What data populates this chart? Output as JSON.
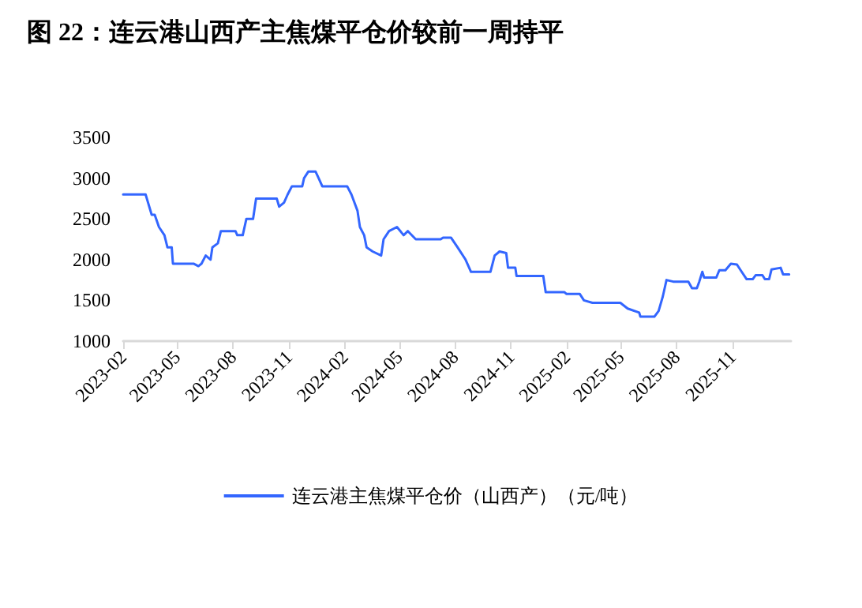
{
  "chart_data": {
    "type": "line",
    "title": "图 22：连云港山西产主焦煤平仓价较前一周持平",
    "x": [
      "2023-02-01",
      "2023-03-10",
      "2023-03-20",
      "2023-03-25",
      "2023-04-01",
      "2023-04-10",
      "2023-04-15",
      "2023-04-22",
      "2023-04-24",
      "2023-05-28",
      "2023-06-05",
      "2023-06-10",
      "2023-06-17",
      "2023-06-25",
      "2023-06-28",
      "2023-07-07",
      "2023-07-12",
      "2023-08-05",
      "2023-08-08",
      "2023-08-17",
      "2023-08-23",
      "2023-09-03",
      "2023-09-08",
      "2023-10-12",
      "2023-10-16",
      "2023-10-24",
      "2023-10-30",
      "2023-11-06",
      "2023-11-23",
      "2023-11-26",
      "2023-12-03",
      "2023-12-15",
      "2023-12-20",
      "2023-12-26",
      "2024-02-05",
      "2024-02-12",
      "2024-02-22",
      "2024-02-26",
      "2024-03-04",
      "2024-03-08",
      "2024-03-18",
      "2024-04-01",
      "2024-04-05",
      "2024-04-14",
      "2024-04-27",
      "2024-05-08",
      "2024-05-15",
      "2024-05-28",
      "2024-07-08",
      "2024-07-12",
      "2024-07-25",
      "2024-08-05",
      "2024-08-18",
      "2024-08-27",
      "2024-09-28",
      "2024-10-05",
      "2024-10-13",
      "2024-10-24",
      "2024-10-27",
      "2024-11-08",
      "2024-11-10",
      "2024-12-24",
      "2024-12-28",
      "2025-01-28",
      "2025-01-31",
      "2025-02-22",
      "2025-03-01",
      "2025-03-15",
      "2025-04-30",
      "2025-05-12",
      "2025-05-31",
      "2025-06-02",
      "2025-06-25",
      "2025-07-02",
      "2025-07-09",
      "2025-07-15",
      "2025-07-26",
      "2025-08-20",
      "2025-08-26",
      "2025-09-03",
      "2025-09-07",
      "2025-09-12",
      "2025-09-15",
      "2025-10-05",
      "2025-10-10",
      "2025-10-20",
      "2025-10-29",
      "2025-11-08",
      "2025-11-15",
      "2025-11-24",
      "2025-12-04",
      "2025-12-09",
      "2025-12-20",
      "2025-12-24",
      "2025-12-31",
      "2026-01-04",
      "2026-01-19",
      "2026-01-23",
      "2026-02-02"
    ],
    "series": [
      {
        "name": "连云港主焦煤平仓价（山西产）（元/吨）",
        "color": "#3366ff",
        "values": [
          2800,
          2800,
          2550,
          2550,
          2400,
          2300,
          2150,
          2150,
          1950,
          1950,
          1920,
          1950,
          2050,
          2000,
          2150,
          2200,
          2350,
          2350,
          2300,
          2300,
          2500,
          2500,
          2750,
          2750,
          2650,
          2700,
          2800,
          2900,
          2900,
          3000,
          3080,
          3080,
          3000,
          2900,
          2900,
          2800,
          2600,
          2400,
          2300,
          2150,
          2100,
          2050,
          2250,
          2350,
          2400,
          2300,
          2350,
          2250,
          2250,
          2270,
          2270,
          2150,
          2000,
          1850,
          1850,
          2050,
          2100,
          2080,
          1900,
          1900,
          1800,
          1800,
          1600,
          1600,
          1580,
          1580,
          1500,
          1470,
          1470,
          1400,
          1350,
          1300,
          1300,
          1370,
          1550,
          1750,
          1730,
          1730,
          1650,
          1650,
          1730,
          1850,
          1780,
          1780,
          1870,
          1870,
          1950,
          1940,
          1860,
          1760,
          1760,
          1810,
          1810,
          1760,
          1760,
          1880,
          1900,
          1820,
          1820
        ]
      }
    ],
    "xlim": [
      "2023-02-01",
      "2026-02-05"
    ],
    "xticks": [
      "2023-02",
      "2023-05",
      "2023-08",
      "2023-11",
      "2024-02",
      "2024-05",
      "2024-08",
      "2024-11",
      "2025-02",
      "2025-05",
      "2025-08",
      "2025-11"
    ],
    "ylim": [
      1000,
      3500
    ],
    "yticks": [
      1000,
      1500,
      2000,
      2500,
      3000,
      3500
    ],
    "grid": false,
    "legend": "bottom",
    "marker": "none",
    "line_style": "solid"
  }
}
